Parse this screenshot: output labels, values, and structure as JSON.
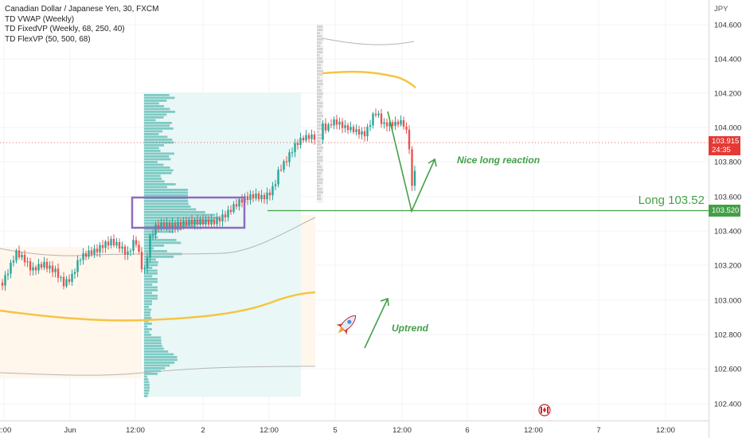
{
  "legend": {
    "symbol": "Canadian Dollar / Japanese Yen, 30, FXCM",
    "ind1": "TD VWAP (Weekly)",
    "ind2": "TD FixedVP (Weekly, 68, 250, 40)",
    "ind3": "TD FlexVP (50, 500, 68)"
  },
  "axis": {
    "currency": "JPY",
    "price_ticks": [
      "104.600",
      "104.400",
      "104.200",
      "104.000",
      "103.800",
      "103.600",
      "103.400",
      "103.200",
      "103.000",
      "102.800",
      "102.600",
      "102.400"
    ],
    "time_ticks": [
      "2:00",
      "Jun",
      "12:00",
      "2",
      "12:00",
      "5",
      "12:00",
      "6",
      "12:00",
      "7",
      "12:00"
    ]
  },
  "badges": {
    "last_price": "103.915",
    "countdown": "24:35",
    "long_level": "103.520"
  },
  "annotations": {
    "long_label": "Long 103.52",
    "reaction_label": "Nice long reaction",
    "uptrend_label": "Uptrend"
  },
  "colors": {
    "up": "#26a69a",
    "down": "#ef5350",
    "annotation": "#43a047",
    "vwap": "#f5c542",
    "box": "#8e6bbf",
    "profile": "#26a69a",
    "last_price": "#e53935"
  },
  "chart_data": {
    "type": "candlestick",
    "title": "Canadian Dollar / Japanese Yen, 30, FXCM",
    "yrange": [
      102.33,
      104.7
    ],
    "levels": {
      "long_entry": 103.52,
      "last_price": 103.915
    },
    "path": [
      [
        0,
        102.5
      ],
      [
        10,
        102.7
      ],
      [
        20,
        102.9
      ],
      [
        30,
        102.8
      ],
      [
        40,
        102.65
      ],
      [
        55,
        102.75
      ],
      [
        70,
        102.7
      ],
      [
        80,
        102.55
      ],
      [
        90,
        102.6
      ],
      [
        100,
        102.8
      ],
      [
        110,
        102.85
      ],
      [
        120,
        102.9
      ],
      [
        130,
        103.0
      ],
      [
        140,
        103.05
      ],
      [
        150,
        102.98
      ],
      [
        160,
        102.85
      ],
      [
        170,
        103.02
      ],
      [
        178,
        102.7
      ],
      [
        182,
        102.65
      ],
      [
        188,
        103.05
      ],
      [
        195,
        103.2
      ],
      [
        205,
        103.25
      ],
      [
        215,
        103.22
      ],
      [
        230,
        103.2
      ],
      [
        245,
        103.22
      ],
      [
        255,
        103.25
      ],
      [
        270,
        103.28
      ],
      [
        285,
        103.35
      ],
      [
        300,
        103.45
      ],
      [
        310,
        103.5
      ],
      [
        320,
        103.55
      ],
      [
        330,
        103.55
      ],
      [
        340,
        103.62
      ],
      [
        345,
        103.7
      ],
      [
        350,
        103.85
      ],
      [
        360,
        103.95
      ],
      [
        370,
        104.1
      ],
      [
        380,
        104.2
      ],
      [
        390,
        104.25
      ],
      [
        395,
        104.25
      ],
      [
        400,
        104.3
      ],
      [
        405,
        104.4
      ],
      [
        410,
        104.35
      ],
      [
        418,
        104.42
      ],
      [
        425,
        104.38
      ],
      [
        432,
        104.32
      ],
      [
        440,
        104.3
      ],
      [
        450,
        104.28
      ],
      [
        458,
        104.28
      ],
      [
        465,
        104.42
      ],
      [
        470,
        104.55
      ],
      [
        475,
        104.52
      ],
      [
        480,
        104.4
      ],
      [
        485,
        104.38
      ],
      [
        495,
        104.36
      ],
      [
        505,
        104.38
      ],
      [
        510,
        104.3
      ],
      [
        514,
        104.1
      ],
      [
        517,
        103.6
      ],
      [
        520,
        103.85
      ],
      [
        524,
        103.92
      ]
    ]
  }
}
